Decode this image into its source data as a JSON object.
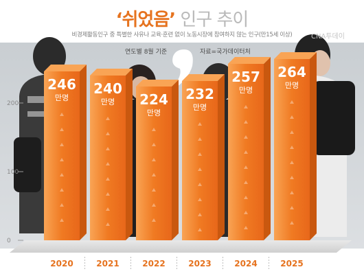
{
  "header": {
    "title_highlight": "‘쉬었음’",
    "title_rest": " 인구 추이",
    "subtitle": "비경제활동인구 중 특별한 사유나 교육·훈련 없이 노동시장에 참여하지 않는 인구(만15세 이상)",
    "watermark": "CNA투데이",
    "basis_note": "연도별 8월 기준",
    "source_note": "자료=국가데이터처"
  },
  "colors": {
    "bar_front": "#f07a22",
    "bar_light": "#f9a455",
    "bar_side": "#c9580f",
    "year_label": "#e6731f",
    "value_label": "#ffffff"
  },
  "chart_data": {
    "type": "bar",
    "categories": [
      "2020",
      "2021",
      "2022",
      "2023",
      "2024",
      "2025"
    ],
    "values": [
      246,
      240,
      224,
      232,
      257,
      264
    ],
    "unit": "만명",
    "yticks": [
      0,
      100,
      200
    ],
    "ylim": [
      0,
      300
    ],
    "grid": false,
    "legend": "none"
  }
}
